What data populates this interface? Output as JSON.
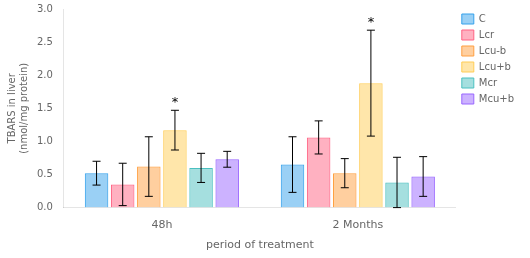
{
  "chart_data": {
    "type": "bar",
    "categories": [
      "48h",
      "2 Months"
    ],
    "series": [
      {
        "name": "C",
        "values": [
          0.52,
          0.65
        ],
        "errors": [
          0.18,
          0.42
        ]
      },
      {
        "name": "Lcr",
        "values": [
          0.35,
          1.06
        ],
        "errors": [
          0.32,
          0.25
        ]
      },
      {
        "name": "Lcu-b",
        "values": [
          0.62,
          0.52
        ],
        "errors": [
          0.45,
          0.22
        ]
      },
      {
        "name": "Lcu+b",
        "values": [
          1.17,
          1.88
        ],
        "errors": [
          0.3,
          0.8
        ]
      },
      {
        "name": "Mcr",
        "values": [
          0.6,
          0.38
        ],
        "errors": [
          0.22,
          0.38
        ]
      },
      {
        "name": "Mcu+b",
        "values": [
          0.73,
          0.47
        ],
        "errors": [
          0.12,
          0.3
        ]
      }
    ],
    "xlabel": "period of treatment",
    "ylabel": "TBARS in liver\n(nmol/mg protein)",
    "ylim": [
      0,
      3.0
    ],
    "yticks": [
      {
        "value": 0,
        "label": "0.0"
      },
      0.5,
      {
        "value": 1.0,
        "label": "1.0"
      },
      1.5,
      {
        "value": 2.0,
        "label": "2.0"
      },
      2.5,
      {
        "value": 3.0,
        "label": "3.0"
      }
    ],
    "grid": false,
    "legend": "upper right",
    "annotations": [
      {
        "text": "*",
        "series": "Lcu+b",
        "category": "48h"
      },
      {
        "text": "*",
        "series": "Lcu+b",
        "category": "2 Months"
      }
    ]
  }
}
